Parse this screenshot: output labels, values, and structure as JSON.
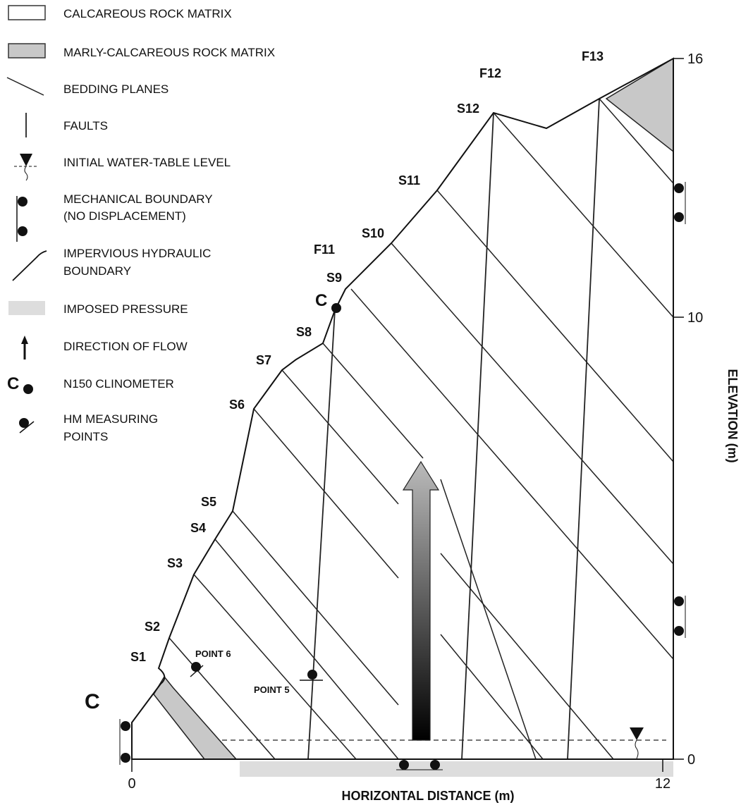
{
  "legend": [
    {
      "lines": [
        "CALCAREOUS ROCK MATRIX"
      ]
    },
    {
      "lines": [
        "MARLY-CALCAREOUS ROCK MATRIX"
      ]
    },
    {
      "lines": [
        "BEDDING PLANES"
      ]
    },
    {
      "lines": [
        "FAULTS"
      ]
    },
    {
      "lines": [
        "INITIAL WATER-TABLE LEVEL"
      ]
    },
    {
      "lines": [
        "MECHANICAL BOUNDARY",
        "(NO DISPLACEMENT)"
      ]
    },
    {
      "lines": [
        "IMPERVIOUS HYDRAULIC",
        "BOUNDARY"
      ]
    },
    {
      "lines": [
        "IMPOSED PRESSURE"
      ]
    },
    {
      "lines": [
        "DIRECTION OF FLOW"
      ]
    },
    {
      "lines": [
        "N150 CLINOMETER"
      ]
    },
    {
      "lines": [
        "HM MEASURING",
        "POINTS"
      ]
    }
  ],
  "legend_clinometer_symbol": "C",
  "sections": [
    "S1",
    "S2",
    "S3",
    "S4",
    "S5",
    "S6",
    "S7",
    "S8",
    "S9",
    "S10",
    "S11",
    "S12"
  ],
  "faults": [
    "F11",
    "F12",
    "F13"
  ],
  "clinometers": [
    "C",
    "C"
  ],
  "points": [
    "POINT 6",
    "POINT 5"
  ],
  "x_axis": {
    "label": "HORIZONTAL DISTANCE (m)",
    "ticks": [
      0,
      12
    ]
  },
  "y_axis": {
    "label": "ELEVATION (m)",
    "ticks": [
      0,
      10,
      16
    ]
  }
}
